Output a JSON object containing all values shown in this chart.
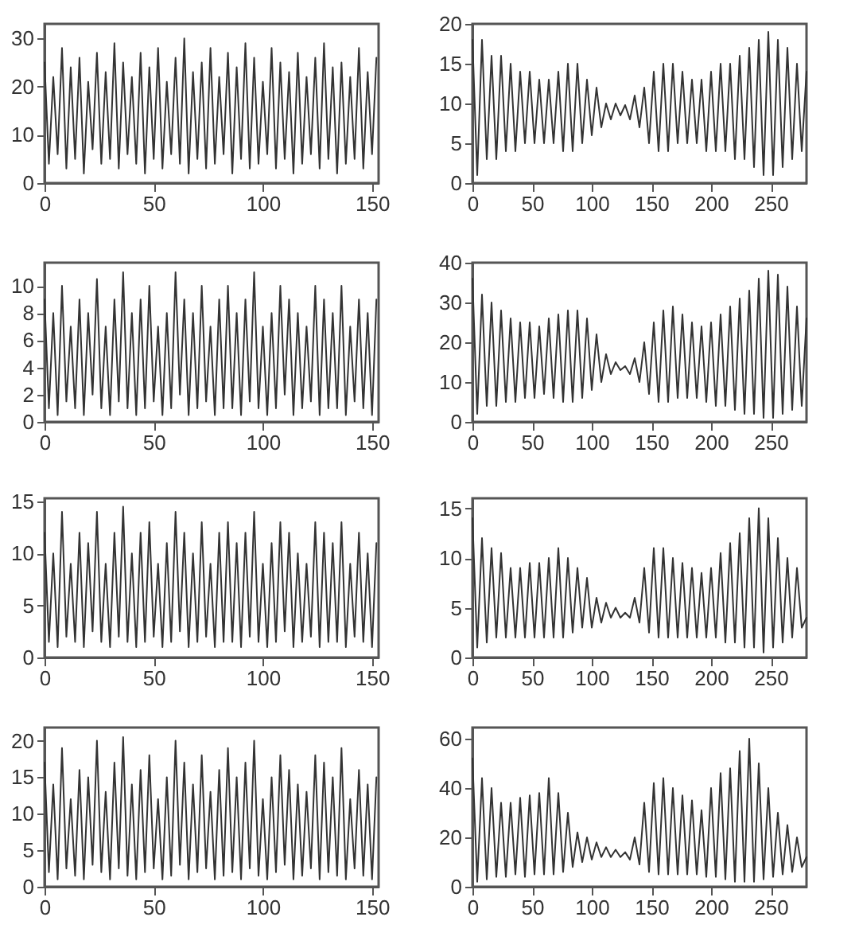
{
  "chart_data": [
    {
      "type": "line",
      "color": "#333333",
      "grid": false,
      "xlim": [
        0,
        153
      ],
      "xticks": [
        0,
        50,
        100,
        150
      ],
      "ylim": [
        0,
        33
      ],
      "yticks": [
        0,
        10,
        20,
        30
      ],
      "x": [
        0,
        2,
        4,
        6,
        8,
        10,
        12,
        14,
        16,
        18,
        20,
        22,
        24,
        26,
        28,
        30,
        32,
        34,
        36,
        38,
        40,
        42,
        44,
        46,
        48,
        50,
        52,
        54,
        56,
        58,
        60,
        62,
        64,
        66,
        68,
        70,
        72,
        74,
        76,
        78,
        80,
        82,
        84,
        86,
        88,
        90,
        92,
        94,
        96,
        98,
        100,
        102,
        104,
        106,
        108,
        110,
        112,
        114,
        116,
        118,
        120,
        122,
        124,
        126,
        128,
        130,
        132,
        134,
        136,
        138,
        140,
        142,
        144,
        146,
        148,
        150,
        152
      ],
      "values": [
        25,
        4,
        22,
        6,
        28,
        3,
        24,
        5,
        26,
        2,
        21,
        7,
        27,
        4,
        23,
        5,
        29,
        3,
        25,
        6,
        22,
        4,
        27,
        2,
        24,
        5,
        28,
        3,
        21,
        6,
        26,
        4,
        30,
        2,
        23,
        5,
        25,
        3,
        28,
        4,
        22,
        6,
        27,
        2,
        24,
        5,
        29,
        3,
        26,
        4,
        21,
        6,
        28,
        3,
        25,
        5,
        23,
        2,
        27,
        4,
        22,
        6,
        26,
        3,
        29,
        5,
        24,
        2,
        25,
        4,
        22,
        5,
        28,
        3,
        23,
        6,
        26
      ]
    },
    {
      "type": "line",
      "color": "#333333",
      "grid": false,
      "xlim": [
        0,
        280
      ],
      "xticks": [
        0,
        50,
        100,
        150,
        200,
        250
      ],
      "ylim": [
        0,
        20
      ],
      "yticks": [
        0,
        5,
        10,
        15,
        20
      ],
      "x": [
        0,
        4,
        8,
        12,
        16,
        20,
        24,
        28,
        32,
        36,
        40,
        44,
        48,
        52,
        56,
        60,
        64,
        68,
        72,
        76,
        80,
        84,
        88,
        92,
        96,
        100,
        104,
        108,
        112,
        116,
        120,
        124,
        128,
        132,
        136,
        140,
        144,
        148,
        152,
        156,
        160,
        164,
        168,
        172,
        176,
        180,
        184,
        188,
        192,
        196,
        200,
        204,
        208,
        212,
        216,
        220,
        224,
        228,
        232,
        236,
        240,
        244,
        248,
        252,
        256,
        260,
        264,
        268,
        272,
        276,
        280
      ],
      "values": [
        18,
        1,
        18,
        3,
        16,
        3,
        16,
        4,
        15,
        4,
        14,
        5,
        14,
        5,
        13,
        5,
        13,
        5,
        14,
        4,
        15,
        4,
        15,
        5,
        13,
        6,
        12,
        7,
        10,
        8,
        10,
        8.5,
        9.8,
        8,
        11,
        7,
        12,
        5,
        14,
        4,
        15,
        4,
        15,
        5,
        14,
        5,
        13,
        5,
        13,
        4,
        14,
        4,
        15,
        4,
        15,
        3,
        16,
        3,
        17,
        2,
        18,
        1,
        19,
        1,
        18,
        2,
        17,
        3,
        15,
        4,
        14
      ]
    },
    {
      "type": "line",
      "color": "#333333",
      "grid": false,
      "xlim": [
        0,
        153
      ],
      "xticks": [
        0,
        50,
        100,
        150
      ],
      "ylim": [
        0,
        11.7
      ],
      "yticks": [
        0,
        2,
        4,
        6,
        8,
        10
      ],
      "x": [
        0,
        2,
        4,
        6,
        8,
        10,
        12,
        14,
        16,
        18,
        20,
        22,
        24,
        26,
        28,
        30,
        32,
        34,
        36,
        38,
        40,
        42,
        44,
        46,
        48,
        50,
        52,
        54,
        56,
        58,
        60,
        62,
        64,
        66,
        68,
        70,
        72,
        74,
        76,
        78,
        80,
        82,
        84,
        86,
        88,
        90,
        92,
        94,
        96,
        98,
        100,
        102,
        104,
        106,
        108,
        110,
        112,
        114,
        116,
        118,
        120,
        122,
        124,
        126,
        128,
        130,
        132,
        134,
        136,
        138,
        140,
        142,
        144,
        146,
        148,
        150,
        152
      ],
      "values": [
        9,
        1,
        8,
        0.5,
        10,
        1.5,
        7,
        1,
        9,
        0.5,
        8,
        2,
        10.5,
        1,
        7,
        0.5,
        9,
        1.5,
        11,
        1,
        8,
        0.5,
        9,
        1,
        10,
        1.5,
        7,
        0.5,
        8,
        1,
        11,
        2,
        9,
        0.5,
        8,
        1,
        10,
        1.5,
        7,
        0.5,
        9,
        1,
        10,
        1,
        8,
        0.5,
        9,
        1.5,
        11,
        1,
        7,
        0.5,
        8,
        1,
        10,
        2,
        9,
        0.5,
        8,
        1,
        7,
        1.5,
        10,
        0.5,
        9,
        1,
        8,
        1,
        10,
        0.5,
        7,
        1.5,
        9,
        1,
        8,
        0.5,
        9
      ]
    },
    {
      "type": "line",
      "color": "#333333",
      "grid": false,
      "xlim": [
        0,
        280
      ],
      "xticks": [
        0,
        50,
        100,
        150,
        200,
        250
      ],
      "ylim": [
        0,
        40
      ],
      "yticks": [
        0,
        10,
        20,
        30,
        40
      ],
      "x": [
        0,
        4,
        8,
        12,
        16,
        20,
        24,
        28,
        32,
        36,
        40,
        44,
        48,
        52,
        56,
        60,
        64,
        68,
        72,
        76,
        80,
        84,
        88,
        92,
        96,
        100,
        104,
        108,
        112,
        116,
        120,
        124,
        128,
        132,
        136,
        140,
        144,
        148,
        152,
        156,
        160,
        164,
        168,
        172,
        176,
        180,
        184,
        188,
        192,
        196,
        200,
        204,
        208,
        212,
        216,
        220,
        224,
        228,
        232,
        236,
        240,
        244,
        248,
        252,
        256,
        260,
        264,
        268,
        272,
        276,
        280
      ],
      "values": [
        36,
        2,
        32,
        4,
        30,
        4,
        28,
        5,
        26,
        5,
        25,
        6,
        25,
        6,
        24,
        7,
        26,
        6,
        27,
        5,
        28,
        5,
        28,
        6,
        26,
        8,
        22,
        10,
        17,
        12,
        15,
        13,
        14,
        12,
        16,
        10,
        20,
        7,
        25,
        5,
        28,
        5,
        29,
        6,
        27,
        6,
        25,
        6,
        24,
        5,
        25,
        4,
        27,
        4,
        29,
        3,
        31,
        2,
        33,
        2,
        36,
        1,
        38,
        1,
        37,
        2,
        34,
        3,
        29,
        4,
        26
      ]
    },
    {
      "type": "line",
      "color": "#333333",
      "grid": false,
      "xlim": [
        0,
        153
      ],
      "xticks": [
        0,
        50,
        100,
        150
      ],
      "ylim": [
        0,
        15.3
      ],
      "yticks": [
        0,
        5,
        10,
        15
      ],
      "x": [
        0,
        2,
        4,
        6,
        8,
        10,
        12,
        14,
        16,
        18,
        20,
        22,
        24,
        26,
        28,
        30,
        32,
        34,
        36,
        38,
        40,
        42,
        44,
        46,
        48,
        50,
        52,
        54,
        56,
        58,
        60,
        62,
        64,
        66,
        68,
        70,
        72,
        74,
        76,
        78,
        80,
        82,
        84,
        86,
        88,
        90,
        92,
        94,
        96,
        98,
        100,
        102,
        104,
        106,
        108,
        110,
        112,
        114,
        116,
        118,
        120,
        122,
        124,
        126,
        128,
        130,
        132,
        134,
        136,
        138,
        140,
        142,
        144,
        146,
        148,
        150,
        152
      ],
      "values": [
        12,
        1.5,
        10,
        1,
        14,
        2,
        9,
        1.5,
        12,
        1,
        11,
        2.5,
        14,
        1.5,
        9,
        1,
        12,
        2,
        14.5,
        1.5,
        10,
        1,
        12,
        1.5,
        13,
        2,
        9,
        1,
        11,
        1.5,
        14,
        2.5,
        12,
        1,
        10,
        1.5,
        13,
        2,
        9,
        1,
        12,
        1.5,
        13,
        1.5,
        11,
        1,
        12,
        2,
        14,
        1.5,
        9,
        1,
        11,
        1.5,
        13,
        2.5,
        12,
        1,
        10,
        1.5,
        9,
        2,
        13,
        1,
        12,
        1.5,
        11,
        1.5,
        13,
        1,
        9,
        2,
        12,
        1.5,
        10,
        1,
        11
      ]
    },
    {
      "type": "line",
      "color": "#333333",
      "grid": false,
      "xlim": [
        0,
        280
      ],
      "xticks": [
        0,
        50,
        100,
        150,
        200,
        250
      ],
      "ylim": [
        0,
        16
      ],
      "yticks": [
        0,
        5,
        10,
        15
      ],
      "x": [
        0,
        4,
        8,
        12,
        16,
        20,
        24,
        28,
        32,
        36,
        40,
        44,
        48,
        52,
        56,
        60,
        64,
        68,
        72,
        76,
        80,
        84,
        88,
        92,
        96,
        100,
        104,
        108,
        112,
        116,
        120,
        124,
        128,
        132,
        136,
        140,
        144,
        148,
        152,
        156,
        160,
        164,
        168,
        172,
        176,
        180,
        184,
        188,
        192,
        196,
        200,
        204,
        208,
        212,
        216,
        220,
        224,
        228,
        232,
        236,
        240,
        244,
        248,
        252,
        256,
        260,
        264,
        268,
        272,
        276,
        280
      ],
      "values": [
        14,
        1,
        12,
        1.5,
        11,
        2,
        10.5,
        2,
        9,
        2,
        9,
        2,
        9.5,
        2,
        9.5,
        2,
        10,
        2,
        11,
        2,
        10,
        2.5,
        9,
        3,
        8,
        3,
        6,
        3.5,
        5.5,
        4,
        5,
        4,
        4.5,
        4,
        6,
        3.5,
        9,
        2.5,
        11,
        2,
        11,
        2,
        10,
        2,
        9.5,
        2,
        9,
        2,
        8.5,
        2,
        9,
        2,
        10.5,
        1.5,
        11.5,
        1.5,
        12.5,
        1,
        14,
        1,
        15,
        0.5,
        14,
        1,
        12,
        1.5,
        10,
        2,
        9,
        3,
        4
      ]
    },
    {
      "type": "line",
      "color": "#333333",
      "grid": false,
      "xlim": [
        0,
        153
      ],
      "xticks": [
        0,
        50,
        100,
        150
      ],
      "ylim": [
        0,
        21.8
      ],
      "yticks": [
        0,
        5,
        10,
        15,
        20
      ],
      "x": [
        0,
        2,
        4,
        6,
        8,
        10,
        12,
        14,
        16,
        18,
        20,
        22,
        24,
        26,
        28,
        30,
        32,
        34,
        36,
        38,
        40,
        42,
        44,
        46,
        48,
        50,
        52,
        54,
        56,
        58,
        60,
        62,
        64,
        66,
        68,
        70,
        72,
        74,
        76,
        78,
        80,
        82,
        84,
        86,
        88,
        90,
        92,
        94,
        96,
        98,
        100,
        102,
        104,
        106,
        108,
        110,
        112,
        114,
        116,
        118,
        120,
        122,
        124,
        126,
        128,
        130,
        132,
        134,
        136,
        138,
        140,
        142,
        144,
        146,
        148,
        150,
        152
      ],
      "values": [
        17,
        2,
        14,
        1,
        19,
        2.5,
        12,
        1.5,
        16,
        1,
        15,
        3,
        20,
        2,
        13,
        1,
        17,
        2.5,
        20.5,
        1.5,
        14,
        1,
        16,
        2,
        18,
        2.5,
        12,
        1,
        15,
        1.5,
        20,
        3,
        17,
        1,
        14,
        2,
        18,
        2.5,
        13,
        1,
        16,
        1.5,
        19,
        2,
        15,
        1,
        17,
        2.5,
        20,
        1.5,
        12,
        1,
        15,
        2,
        18,
        3,
        16,
        1,
        14,
        1.5,
        13,
        2.5,
        18,
        1,
        17,
        2,
        15,
        1.5,
        19,
        1,
        12,
        2.5,
        16,
        1.5,
        14,
        1,
        15
      ]
    },
    {
      "type": "line",
      "color": "#333333",
      "grid": false,
      "xlim": [
        0,
        280
      ],
      "xticks": [
        0,
        50,
        100,
        150,
        200,
        250
      ],
      "ylim": [
        0,
        64.5
      ],
      "yticks": [
        0,
        20,
        40,
        60
      ],
      "x": [
        0,
        4,
        8,
        12,
        16,
        20,
        24,
        28,
        32,
        36,
        40,
        44,
        48,
        52,
        56,
        60,
        64,
        68,
        72,
        76,
        80,
        84,
        88,
        92,
        96,
        100,
        104,
        108,
        112,
        116,
        120,
        124,
        128,
        132,
        136,
        140,
        144,
        148,
        152,
        156,
        160,
        164,
        168,
        172,
        176,
        180,
        184,
        188,
        192,
        196,
        200,
        204,
        208,
        212,
        216,
        220,
        224,
        228,
        232,
        236,
        240,
        244,
        248,
        252,
        256,
        260,
        264,
        268,
        272,
        276,
        280
      ],
      "values": [
        52,
        2,
        44,
        3,
        40,
        4,
        34,
        4,
        34,
        5,
        36,
        4,
        37,
        5,
        38,
        5,
        44,
        5,
        38,
        6,
        30,
        8,
        22,
        10,
        20,
        11,
        18,
        12,
        16,
        12,
        15,
        12,
        14,
        11,
        20,
        9,
        34,
        6,
        42,
        5,
        44,
        5,
        40,
        5,
        37,
        5,
        35,
        5,
        31,
        4,
        40,
        4,
        46,
        3,
        48,
        2,
        55,
        2,
        60,
        2,
        50,
        3,
        40,
        4,
        30,
        5,
        25,
        6,
        20,
        8,
        12
      ]
    }
  ]
}
